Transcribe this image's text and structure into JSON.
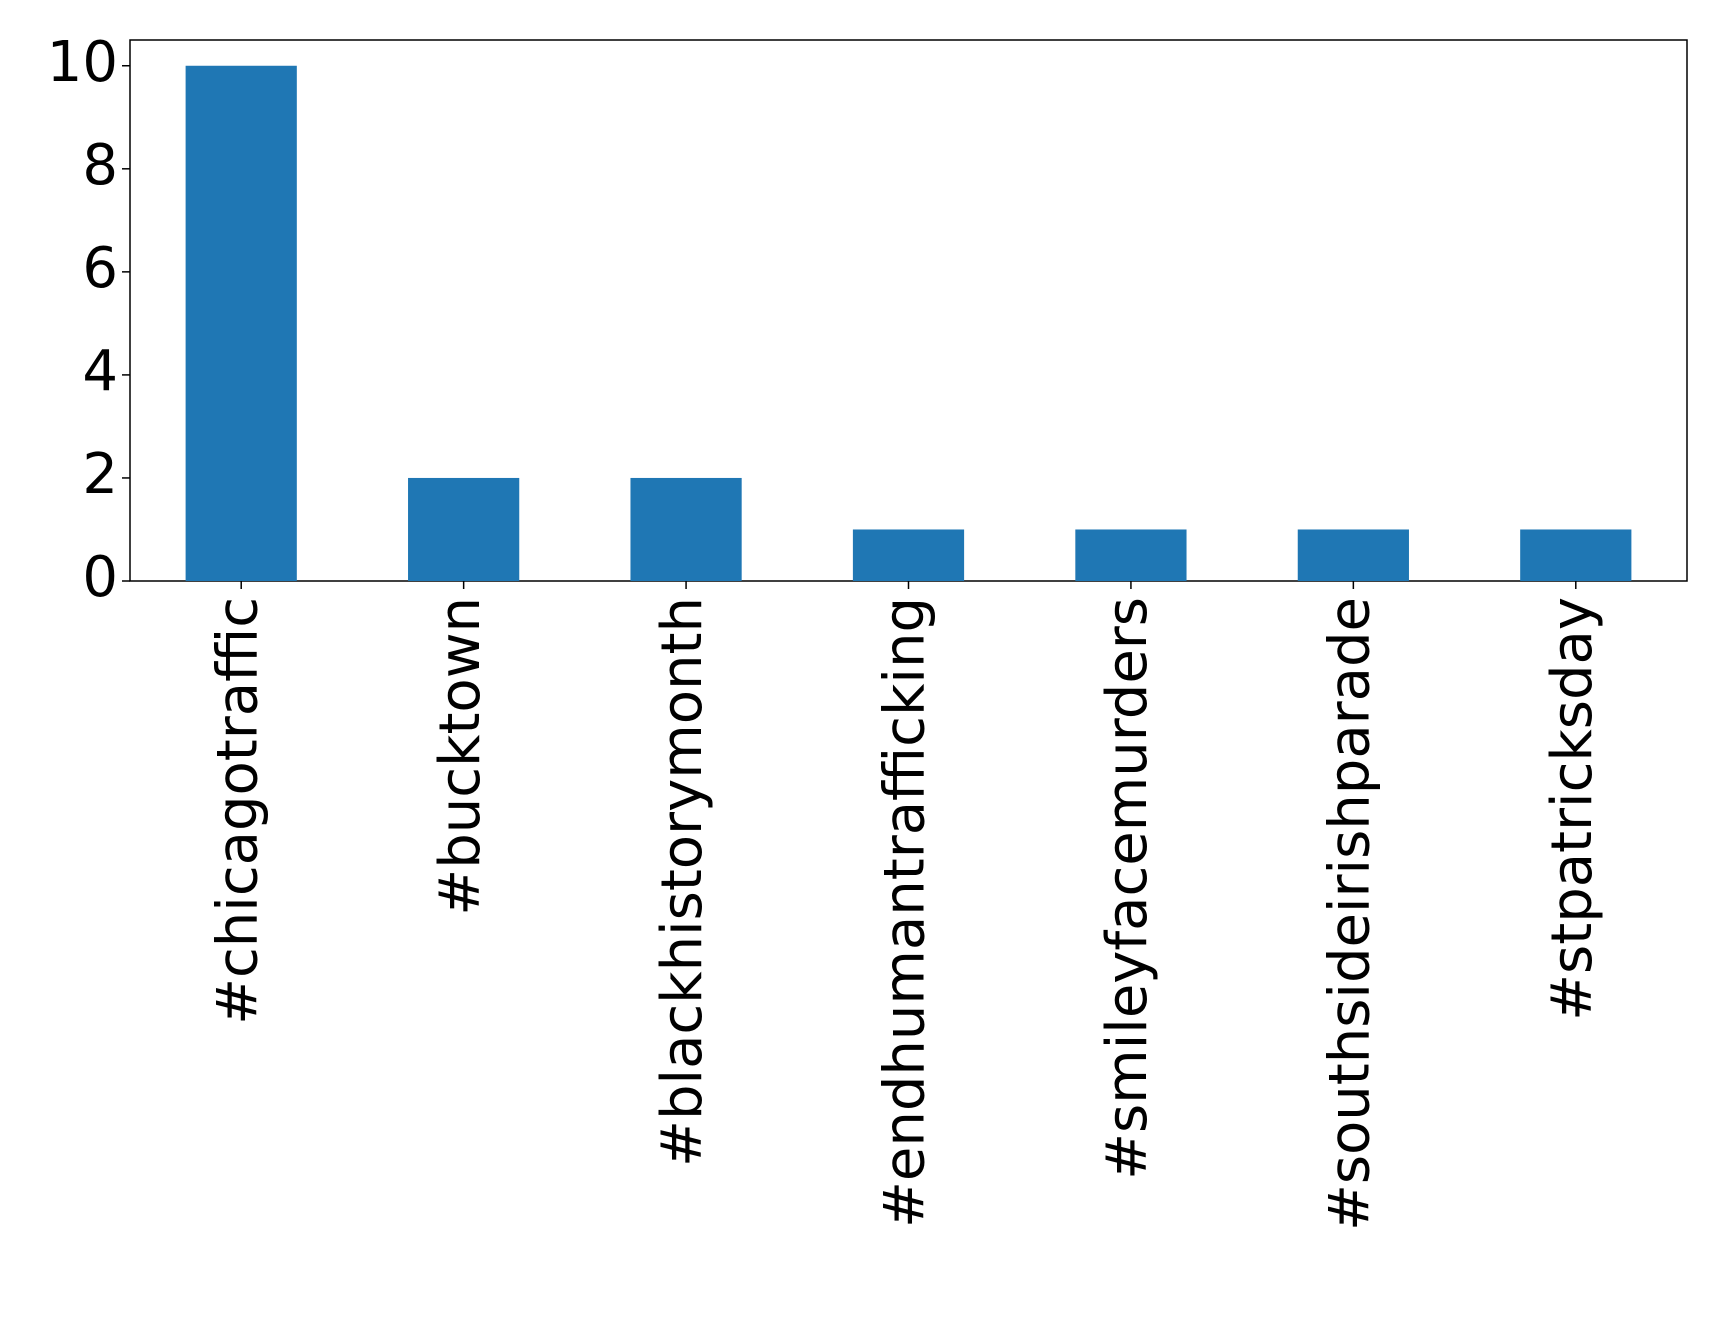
{
  "chart_data": {
    "type": "bar",
    "categories": [
      "#chicagotraffic",
      "#bucktown",
      "#blackhistorymonth",
      "#endhumantrafficking",
      "#smileyfacemurders",
      "#southsideirishparade",
      "#stpatricksday"
    ],
    "values": [
      10,
      2,
      2,
      1,
      1,
      1,
      1
    ],
    "color": "#1f77b4",
    "ylim": [
      0,
      10.5
    ],
    "yticks": [
      0,
      2,
      4,
      6,
      8,
      10
    ],
    "grid": false
  }
}
